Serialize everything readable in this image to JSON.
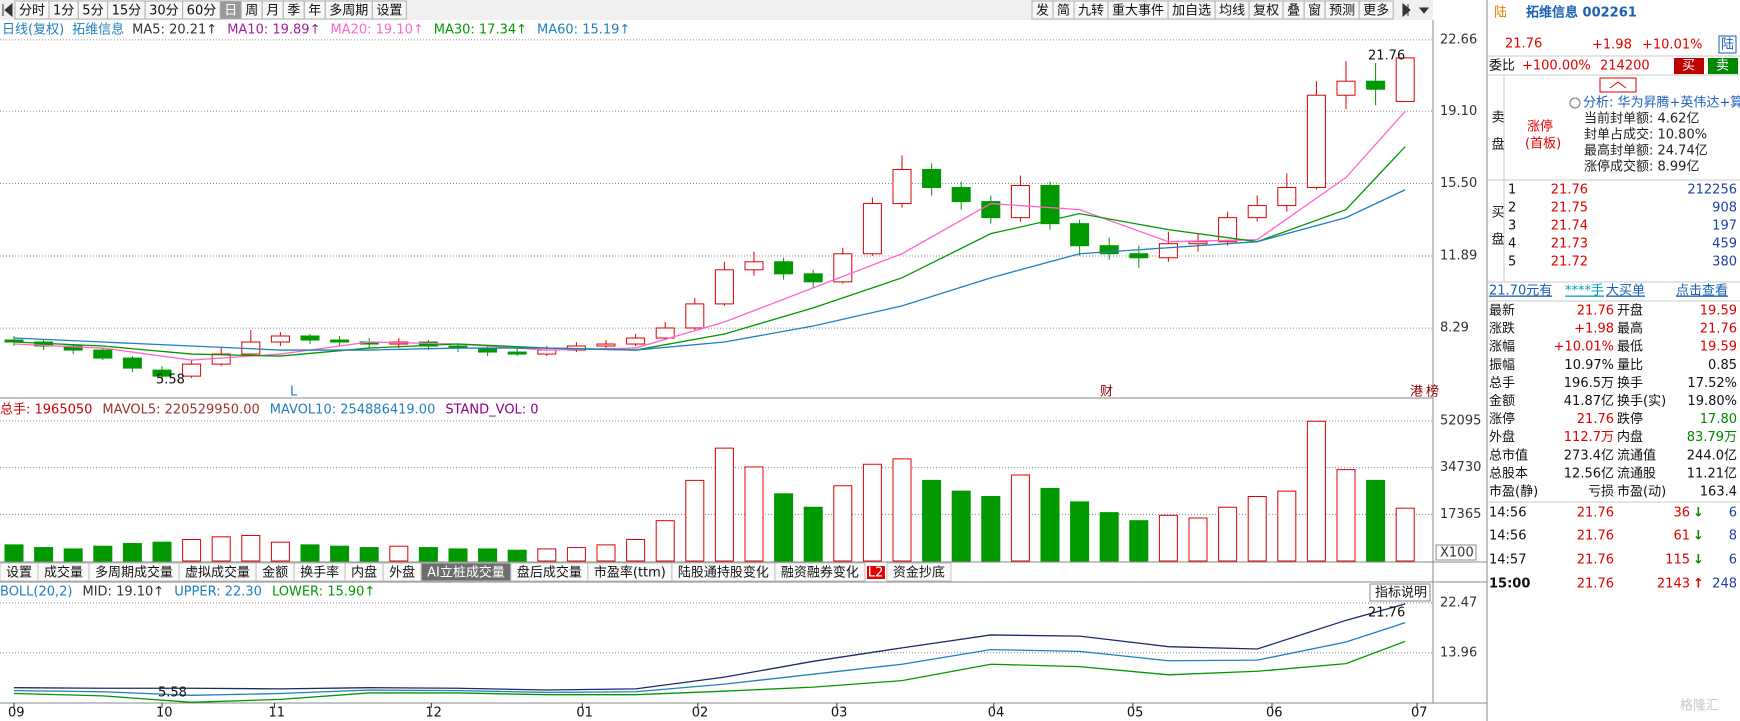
{
  "toolbar": {
    "left": [
      "分时",
      "1分",
      "5分",
      "15分",
      "30分",
      "60分",
      "日",
      "周",
      "月",
      "季",
      "年",
      "多周期",
      "设置"
    ],
    "right": [
      "发",
      "简",
      "九转",
      "重大事件",
      "加自选",
      "均线",
      "复权",
      "叠",
      "窗",
      "预测",
      "更多"
    ]
  },
  "chart_data": [
    {
      "type": "candlestick",
      "title": "日线(复权)",
      "stock": "拓维信息",
      "legend": [
        {
          "label": "MA5: 20.21↑",
          "color": "#333333"
        },
        {
          "label": "MA10: 19.89↑",
          "color": "#a020a0"
        },
        {
          "label": "MA20: 19.10↑",
          "color": "#ff66cc"
        },
        {
          "label": "MA30: 17.34↑",
          "color": "#009900"
        },
        {
          "label": "MA60: 15.19↑",
          "color": "#1f7fbf"
        }
      ],
      "candles": [
        [
          7.7,
          7.6,
          7.9,
          7.4
        ],
        [
          7.6,
          7.4,
          7.7,
          7.2
        ],
        [
          7.4,
          7.2,
          7.5,
          7.0
        ],
        [
          7.2,
          6.8,
          7.3,
          6.7
        ],
        [
          6.8,
          6.3,
          6.9,
          6.1
        ],
        [
          6.2,
          5.9,
          6.4,
          5.58
        ],
        [
          5.9,
          6.5,
          6.7,
          5.8
        ],
        [
          6.5,
          7.0,
          7.3,
          6.4
        ],
        [
          7.0,
          7.6,
          8.2,
          6.9
        ],
        [
          7.6,
          7.9,
          8.1,
          7.4
        ],
        [
          7.9,
          7.7,
          8.0,
          7.5
        ],
        [
          7.7,
          7.6,
          7.9,
          7.4
        ],
        [
          7.6,
          7.5,
          7.8,
          7.3
        ],
        [
          7.5,
          7.6,
          7.8,
          7.3
        ],
        [
          7.6,
          7.4,
          7.7,
          7.2
        ],
        [
          7.4,
          7.3,
          7.5,
          7.1
        ],
        [
          7.3,
          7.1,
          7.4,
          6.9
        ],
        [
          7.1,
          7.0,
          7.3,
          6.9
        ],
        [
          7.0,
          7.2,
          7.4,
          6.9
        ],
        [
          7.2,
          7.4,
          7.6,
          7.1
        ],
        [
          7.4,
          7.5,
          7.7,
          7.3
        ],
        [
          7.5,
          7.8,
          8.0,
          7.4
        ],
        [
          7.8,
          8.3,
          8.6,
          7.7
        ],
        [
          8.3,
          9.5,
          9.8,
          8.2
        ],
        [
          9.5,
          11.2,
          11.6,
          9.4
        ],
        [
          11.2,
          11.6,
          12.1,
          10.9
        ],
        [
          11.6,
          11.0,
          11.8,
          10.7
        ],
        [
          11.0,
          10.6,
          11.2,
          10.3
        ],
        [
          10.6,
          12.0,
          12.3,
          10.5
        ],
        [
          12.0,
          14.5,
          14.8,
          11.9
        ],
        [
          14.5,
          16.2,
          16.9,
          14.3
        ],
        [
          16.2,
          15.3,
          16.5,
          14.9
        ],
        [
          15.3,
          14.6,
          15.6,
          14.2
        ],
        [
          14.6,
          13.8,
          14.9,
          13.5
        ],
        [
          13.8,
          15.4,
          15.9,
          13.6
        ],
        [
          15.4,
          13.5,
          15.6,
          13.2
        ],
        [
          13.5,
          12.4,
          13.7,
          11.9
        ],
        [
          12.4,
          12.0,
          12.8,
          11.7
        ],
        [
          12.0,
          11.8,
          12.4,
          11.3
        ],
        [
          11.8,
          12.5,
          13.1,
          11.6
        ],
        [
          12.5,
          12.6,
          13.0,
          12.1
        ],
        [
          12.6,
          13.8,
          14.1,
          12.4
        ],
        [
          13.8,
          14.4,
          14.9,
          13.6
        ],
        [
          14.4,
          15.3,
          16.0,
          14.1
        ],
        [
          15.3,
          19.9,
          20.6,
          15.2
        ],
        [
          19.9,
          20.6,
          21.6,
          19.2
        ],
        [
          20.6,
          20.2,
          21.5,
          19.4
        ],
        [
          19.59,
          21.76,
          21.76,
          19.59
        ]
      ],
      "x": [
        0,
        3,
        6,
        9,
        12,
        15,
        18,
        21,
        24,
        27,
        30,
        33,
        36,
        39,
        42,
        45,
        47
      ],
      "series": [
        {
          "name": "MA20",
          "color": "#ff66cc",
          "values": [
            7.5,
            7.3,
            6.7,
            7.0,
            7.6,
            7.5,
            7.2,
            7.3,
            8.6,
            10.3,
            12.0,
            14.5,
            14.2,
            12.6,
            12.7,
            15.8,
            19.1
          ]
        },
        {
          "name": "MA30",
          "color": "#009900",
          "values": [
            7.6,
            7.4,
            7.0,
            6.9,
            7.3,
            7.5,
            7.3,
            7.2,
            8.0,
            9.3,
            10.8,
            13.0,
            14.0,
            13.2,
            12.6,
            14.2,
            17.34
          ]
        },
        {
          "name": "MA60",
          "color": "#1f7fbf",
          "values": [
            7.8,
            7.6,
            7.4,
            7.2,
            7.2,
            7.3,
            7.3,
            7.2,
            7.6,
            8.4,
            9.4,
            10.8,
            12.0,
            12.3,
            12.6,
            13.8,
            15.19
          ]
        }
      ],
      "ylim": [
        4.86,
        23.55
      ],
      "yticks": [
        8.29,
        {
          "value": 11.89,
          "label": "11.89"
        },
        {
          "value": 15.5,
          "label": "15.50"
        },
        {
          "value": 19.1,
          "label": "19.10"
        },
        22.66
      ],
      "grid": true,
      "annotations": [
        "21.76",
        "5.58",
        "L",
        "财",
        "港",
        "榜"
      ]
    },
    {
      "type": "bar",
      "header": [
        {
          "text": "总手: 1965050",
          "color": "#cc0000"
        },
        {
          "text": "MAVOL5: 220529950.00",
          "color": "#993333"
        },
        {
          "text": "MAVOL10: 254886419.00",
          "color": "#1f7fbf"
        },
        {
          "text": "STAND_VOL: 0",
          "color": "#8b008b"
        }
      ],
      "values": [
        6000,
        5000,
        4500,
        5500,
        6500,
        7000,
        8000,
        9000,
        9500,
        7000,
        6000,
        5500,
        5000,
        5500,
        5000,
        4500,
        4500,
        4000,
        4500,
        5000,
        6000,
        8000,
        15000,
        30000,
        42000,
        35000,
        25000,
        20000,
        28000,
        36000,
        38000,
        30000,
        26000,
        24000,
        32000,
        27000,
        22000,
        18000,
        15000,
        17000,
        16000,
        20000,
        24000,
        26000,
        52000,
        34000,
        30000,
        19650
      ],
      "ylim": [
        0,
        52095
      ],
      "yticks": [
        17365,
        34730,
        52095
      ],
      "unit": "X100"
    },
    {
      "type": "line",
      "header": [
        {
          "text": "BOLL(20,2)",
          "color": "#1f7fbf"
        },
        {
          "text": "MID: 19.10↑",
          "color": "#333333"
        },
        {
          "text": "UPPER: 22.30",
          "color": "#1f7fbf"
        },
        {
          "text": "LOWER: 15.90↑",
          "color": "#009900"
        }
      ],
      "x": [
        0,
        3,
        6,
        9,
        12,
        15,
        18,
        21,
        24,
        27,
        30,
        33,
        36,
        39,
        42,
        45,
        47
      ],
      "series": [
        {
          "name": "MID",
          "color": "#1f7fbf",
          "values": [
            7.5,
            7.3,
            6.7,
            7.0,
            7.6,
            7.5,
            7.2,
            7.3,
            8.6,
            10.3,
            12.0,
            14.5,
            14.2,
            12.6,
            12.7,
            15.8,
            19.1
          ]
        },
        {
          "name": "UPPER",
          "color": "#1a2a6c",
          "values": [
            8.0,
            7.9,
            7.9,
            7.8,
            8.0,
            7.9,
            7.6,
            7.8,
            9.8,
            12.5,
            14.8,
            17.0,
            16.8,
            15.0,
            14.6,
            19.5,
            22.3
          ]
        },
        {
          "name": "LOWER",
          "color": "#009900",
          "values": [
            7.0,
            6.6,
            5.5,
            6.0,
            7.1,
            7.1,
            6.8,
            6.8,
            7.4,
            8.1,
            9.2,
            12.0,
            11.6,
            10.2,
            10.8,
            12.1,
            15.9
          ]
        }
      ],
      "ylim": [
        5.64,
        25.87
      ],
      "yticks": [
        13.96,
        22.47
      ],
      "xticks": [
        {
          "value": 0,
          "label": "09"
        },
        {
          "value": 5,
          "label": "10"
        },
        {
          "value": 8.8,
          "label": "11"
        },
        {
          "value": 14.1,
          "label": "12"
        },
        {
          "value": 19.2,
          "label": "01"
        },
        {
          "value": 23.1,
          "label": "02"
        },
        {
          "value": 27.8,
          "label": "03"
        },
        {
          "value": 33.1,
          "label": "04"
        },
        {
          "value": 37.8,
          "label": "05"
        },
        {
          "value": 42.5,
          "label": "06"
        },
        {
          "value": 47.4,
          "label": "07"
        }
      ],
      "annotations": [
        "21.76",
        "5.58"
      ],
      "help": "指标说明"
    }
  ],
  "tabs": [
    "设置",
    "成交量",
    "多周期成交量",
    "虚拟成交量",
    "金额",
    "换手率",
    "内盘",
    "外盘",
    "AI立桩成交量",
    "盘后成交量",
    "市盈率(ttm)",
    "陆股通持股变化",
    "融资融券变化",
    "资金抄底"
  ],
  "l2_badge": "L2",
  "side": {
    "name": "拓维信息 002261",
    "price": "21.76",
    "change": "+1.98",
    "pct": "+10.01%",
    "tag": "陆",
    "weibi_label": "委比",
    "weibi": "+100.00%",
    "weibi_vol": "214200",
    "buy_btn": "买",
    "sell_btn": "卖",
    "sell_label": "卖盘",
    "limit": "涨停",
    "limit_sub": "(首板)",
    "analysis": [
      "分析: 华为昇腾+英伟达+算力租",
      "当前封单额: 4.62亿",
      "封单占成交: 10.80%",
      "最高封单额: 24.74亿",
      "涨停成交额: 8.99亿"
    ],
    "buy_label": "买盘",
    "bids": [
      [
        "1",
        "21.76",
        "212256"
      ],
      [
        "2",
        "21.75",
        "908"
      ],
      [
        "3",
        "21.74",
        "197"
      ],
      [
        "4",
        "21.73",
        "459"
      ],
      [
        "5",
        "21.72",
        "380"
      ]
    ],
    "bigorder": [
      "21.70元有",
      "****手",
      "大买单",
      "点击查看"
    ],
    "stats": [
      [
        "最新",
        "21.76",
        "开盘",
        "19.59"
      ],
      [
        "涨跌",
        "+1.98",
        "最高",
        "21.76"
      ],
      [
        "涨幅",
        "+10.01%",
        "最低",
        "19.59"
      ],
      [
        "振幅",
        "10.97%",
        "量比",
        "0.85"
      ],
      [
        "总手",
        "196.5万",
        "换手",
        "17.52%"
      ],
      [
        "金额",
        "41.87亿",
        "换手(实)",
        "19.80%"
      ],
      [
        "涨停",
        "21.76",
        "跌停",
        "17.80"
      ],
      [
        "外盘",
        "112.7万",
        "内盘",
        "83.79万"
      ],
      [
        "总市值",
        "273.4亿",
        "流通值",
        "244.0亿"
      ],
      [
        "总股本",
        "12.56亿",
        "流通股",
        "11.21亿"
      ],
      [
        "市盈(静)",
        "亏损",
        "市盈(动)",
        "163.4"
      ]
    ],
    "ticks": [
      [
        "14:56",
        "21.76",
        "36",
        "↓",
        "6"
      ],
      [
        "14:56",
        "21.76",
        "61",
        "↓",
        "8"
      ],
      [
        "14:57",
        "21.76",
        "115",
        "↓",
        "6"
      ],
      [
        "15:00",
        "21.76",
        "2143",
        "↑",
        "248"
      ]
    ]
  },
  "watermark": "格隆汇"
}
